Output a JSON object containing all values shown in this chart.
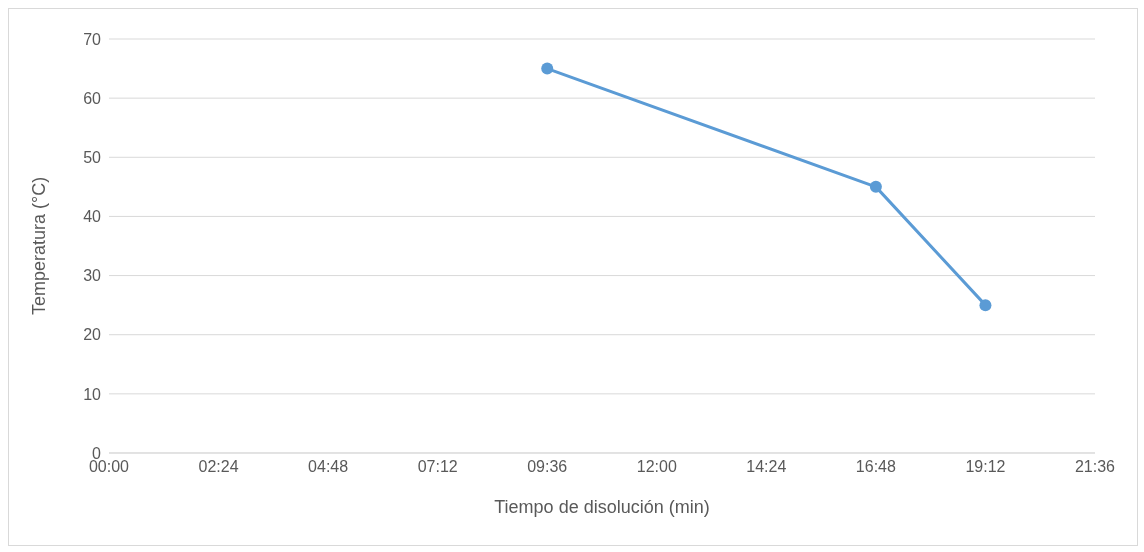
{
  "chart_data": {
    "type": "line",
    "xlabel": "Tiempo de disolución (min)",
    "ylabel": "Temperatura (°C)",
    "x": [
      9.6,
      16.8,
      19.2
    ],
    "series": [
      {
        "color": "#5b9bd5",
        "values": [
          65,
          45,
          25
        ]
      }
    ],
    "xlim": [
      0,
      21.6
    ],
    "xticks": [
      {
        "value": 0,
        "label": "00:00"
      },
      {
        "value": 2.4,
        "label": "02:24"
      },
      {
        "value": 4.8,
        "label": "04:48"
      },
      {
        "value": 7.2,
        "label": "07:12"
      },
      {
        "value": 9.6,
        "label": "09:36"
      },
      {
        "value": 12,
        "label": "12:00"
      },
      {
        "value": 14.4,
        "label": "14:24"
      },
      {
        "value": 16.8,
        "label": "16:48"
      },
      {
        "value": 19.2,
        "label": "19:12"
      },
      {
        "value": 21.6,
        "label": "21:36"
      }
    ],
    "ylim": [
      0,
      70
    ],
    "yticks": [
      0,
      10,
      20,
      30,
      40,
      50,
      60,
      70
    ],
    "grid": "y",
    "marker": "circle",
    "line_style": "solid"
  }
}
